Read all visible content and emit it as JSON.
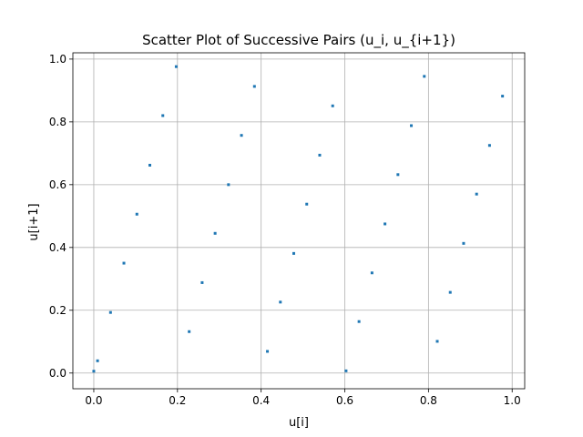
{
  "chart_data": {
    "type": "scatter",
    "title": "Scatter Plot of Successive Pairs (u_i, u_{i+1})",
    "xlabel": "u[i]",
    "ylabel": "u[i+1]",
    "xlim": [
      -0.05,
      1.03
    ],
    "ylim": [
      -0.05,
      1.02
    ],
    "grid": true,
    "color": "#1f77b4",
    "x_ticks": [
      0.0,
      0.2,
      0.4,
      0.6,
      0.8,
      1.0
    ],
    "y_ticks": [
      0.0,
      0.2,
      0.4,
      0.6,
      0.8,
      1.0
    ],
    "x_tick_labels": [
      "0.0",
      "0.2",
      "0.4",
      "0.6",
      "0.8",
      "1.0"
    ],
    "y_tick_labels": [
      "0.0",
      "0.2",
      "0.4",
      "0.6",
      "0.8",
      "1.0"
    ],
    "points": [
      {
        "x": 0.0,
        "y": 0.006
      },
      {
        "x": 0.009,
        "y": 0.039
      },
      {
        "x": 0.04,
        "y": 0.193
      },
      {
        "x": 0.072,
        "y": 0.35
      },
      {
        "x": 0.103,
        "y": 0.506
      },
      {
        "x": 0.134,
        "y": 0.662
      },
      {
        "x": 0.165,
        "y": 0.82
      },
      {
        "x": 0.197,
        "y": 0.976
      },
      {
        "x": 0.228,
        "y": 0.132
      },
      {
        "x": 0.259,
        "y": 0.288
      },
      {
        "x": 0.29,
        "y": 0.445
      },
      {
        "x": 0.322,
        "y": 0.6
      },
      {
        "x": 0.353,
        "y": 0.757
      },
      {
        "x": 0.384,
        "y": 0.913
      },
      {
        "x": 0.415,
        "y": 0.069
      },
      {
        "x": 0.446,
        "y": 0.226
      },
      {
        "x": 0.478,
        "y": 0.381
      },
      {
        "x": 0.509,
        "y": 0.538
      },
      {
        "x": 0.54,
        "y": 0.694
      },
      {
        "x": 0.571,
        "y": 0.851
      },
      {
        "x": 0.603,
        "y": 0.007
      },
      {
        "x": 0.634,
        "y": 0.164
      },
      {
        "x": 0.665,
        "y": 0.319
      },
      {
        "x": 0.696,
        "y": 0.475
      },
      {
        "x": 0.727,
        "y": 0.632
      },
      {
        "x": 0.759,
        "y": 0.788
      },
      {
        "x": 0.79,
        "y": 0.945
      },
      {
        "x": 0.821,
        "y": 0.101
      },
      {
        "x": 0.852,
        "y": 0.257
      },
      {
        "x": 0.884,
        "y": 0.413
      },
      {
        "x": 0.915,
        "y": 0.57
      },
      {
        "x": 0.946,
        "y": 0.725
      },
      {
        "x": 0.977,
        "y": 0.882
      }
    ]
  }
}
